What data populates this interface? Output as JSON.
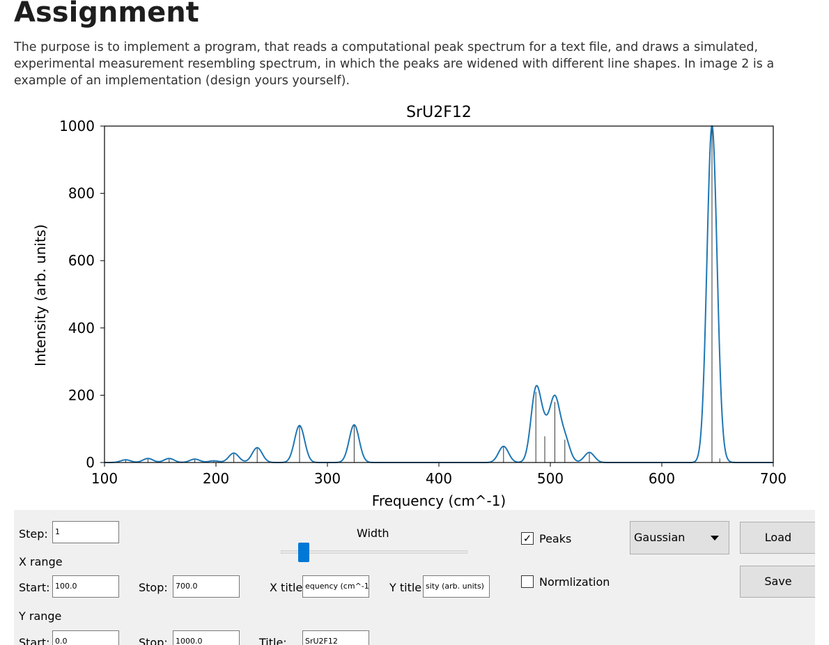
{
  "document": {
    "heading": "Assignment",
    "intro": "The purpose is to implement a program, that reads a computational peak spectrum for a text file, and draws a simulated, experimental measurement resembling spectrum, in which the peaks are widened with different line shapes. In image 2 is a example of an implementation (design yours yourself)."
  },
  "chart_data": {
    "type": "line",
    "title": "SrU2F12",
    "xlabel": "Frequency (cm^-1)",
    "ylabel": "Intensity (arb. units)",
    "xlim": [
      100,
      700
    ],
    "ylim": [
      0,
      1000
    ],
    "xticks": [
      100,
      200,
      300,
      400,
      500,
      600,
      700
    ],
    "yticks": [
      0,
      200,
      400,
      600,
      800,
      1000
    ],
    "grid": false,
    "line_color": "#1f77b4",
    "peak_color": "#333333",
    "peaks": [
      {
        "x": 119,
        "y": 8
      },
      {
        "x": 139,
        "y": 12
      },
      {
        "x": 158,
        "y": 12
      },
      {
        "x": 181,
        "y": 10
      },
      {
        "x": 198,
        "y": 5
      },
      {
        "x": 216,
        "y": 28
      },
      {
        "x": 237,
        "y": 44
      },
      {
        "x": 275,
        "y": 110
      },
      {
        "x": 324,
        "y": 112
      },
      {
        "x": 458,
        "y": 48
      },
      {
        "x": 487,
        "y": 210
      },
      {
        "x": 495,
        "y": 78
      },
      {
        "x": 504,
        "y": 180
      },
      {
        "x": 513,
        "y": 68
      },
      {
        "x": 535,
        "y": 30
      },
      {
        "x": 645,
        "y": 1000
      },
      {
        "x": 652,
        "y": 12
      }
    ],
    "curve_width": 4.5
  },
  "controls": {
    "step_label": "Step:",
    "step_value": "1",
    "width_label": "Width",
    "width_slider_fraction": 0.1,
    "peaks_label": "Peaks",
    "peaks_checked": true,
    "normalization_label": "Normlization",
    "normalization_checked": false,
    "lineshape_value": "Gaussian",
    "load_label": "Load",
    "save_label": "Save",
    "x_range_label": "X range",
    "x_start_label": "Start:",
    "x_start_value": "100.0",
    "x_stop_label": "Stop:",
    "x_stop_value": "700.0",
    "x_title_label": "X title:",
    "x_title_value": "equency (cm^-1",
    "y_title_label": "Y title:",
    "y_title_value": "sity (arb. units)",
    "y_range_label": "Y range",
    "y_start_label": "Start:",
    "y_start_value": "0.0",
    "y_stop_label": "Stop:",
    "y_stop_value": "1000.0",
    "title_label": "Title:",
    "title_value": "SrU2F12"
  }
}
